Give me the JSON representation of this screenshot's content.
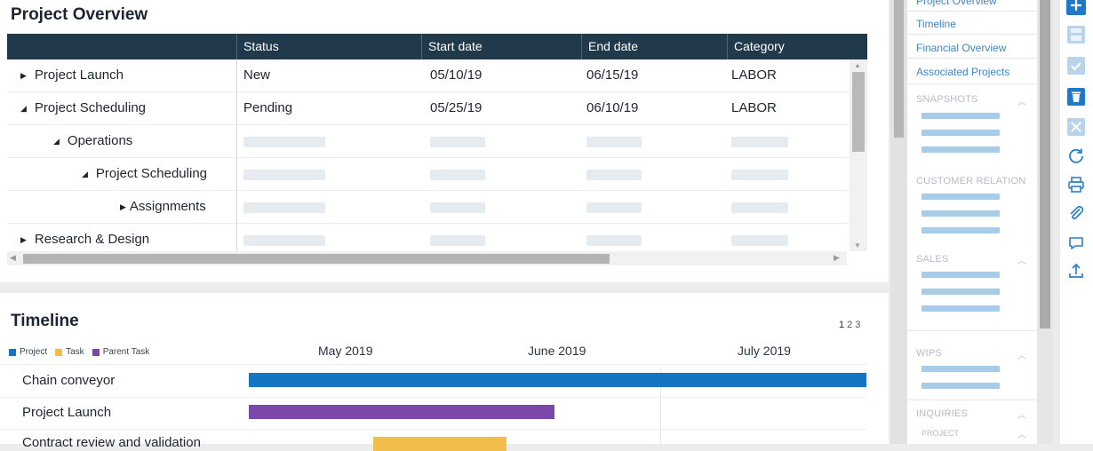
{
  "overview": {
    "title": "Project Overview",
    "columns": [
      "Status",
      "Start date",
      "End date",
      "Category"
    ],
    "rows": [
      {
        "name": "Project Launch",
        "toggle": "collapsed",
        "status": "New",
        "start": "05/10/19",
        "end": "06/15/19",
        "category": "LABOR"
      },
      {
        "name": "Project Scheduling",
        "toggle": "expanded",
        "status": "Pending",
        "start": "05/25/19",
        "end": "06/10/19",
        "category": "LABOR"
      },
      {
        "name": "Operations",
        "toggle": "expanded",
        "status": "",
        "start": "",
        "end": "",
        "category": ""
      },
      {
        "name": "Project Scheduling",
        "toggle": "expanded",
        "status": "",
        "start": "",
        "end": "",
        "category": ""
      },
      {
        "name": "Assignments",
        "toggle": "collapsed",
        "status": "",
        "start": "",
        "end": "",
        "category": ""
      },
      {
        "name": "Research & Design",
        "toggle": "collapsed",
        "status": "",
        "start": "",
        "end": "",
        "category": ""
      }
    ]
  },
  "timeline": {
    "title": "Timeline",
    "legend": [
      {
        "label": "Project",
        "color": "#1475c4"
      },
      {
        "label": "Task",
        "color": "#f2be4b"
      },
      {
        "label": "Parent Task",
        "color": "#7b47a8"
      }
    ],
    "pages": [
      "1",
      "2",
      "3"
    ],
    "months": [
      "May 2019",
      "June 2019",
      "July 2019"
    ],
    "items": [
      {
        "label": "Chain conveyor",
        "color": "#1475c4"
      },
      {
        "label": "Project Launch",
        "color": "#7b47a8"
      },
      {
        "label": "Contract review and validation",
        "color": "#f2be4b"
      }
    ]
  },
  "sidebar": {
    "links": [
      "Project Overview",
      "Timeline",
      "Financial Overview",
      "Associated Projects"
    ],
    "sections": [
      "SNAPSHOTS",
      "CUSTOMER RELATION",
      "SALES",
      "WIPS",
      "INQUIRIES"
    ],
    "inquiries_sub": "PROJECT"
  },
  "toolbar": {
    "icons": [
      "plus-icon",
      "save-icon",
      "checkmark-icon",
      "trash-icon",
      "close-icon",
      "refresh-icon",
      "print-icon",
      "attach-icon",
      "comment-icon",
      "upload-icon"
    ]
  }
}
